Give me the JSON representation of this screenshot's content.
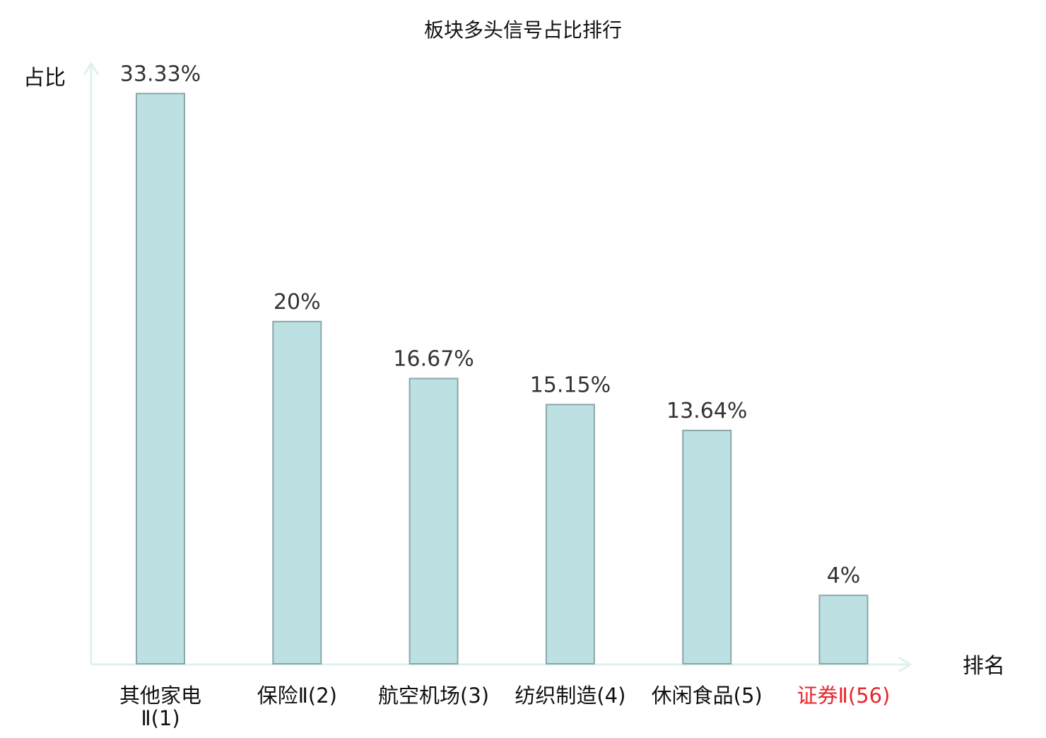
{
  "chart_data": {
    "type": "bar",
    "title": "板块多头信号占比排行",
    "xlabel": "排名",
    "ylabel": "占比",
    "categories": [
      [
        "其他家电",
        "Ⅱ(1)"
      ],
      [
        "保险Ⅱ(2)"
      ],
      [
        "航空机场(3)"
      ],
      [
        "纺织制造(4)"
      ],
      [
        "休闲食品(5)"
      ],
      [
        "证券Ⅱ(56)"
      ]
    ],
    "values": [
      33.33,
      20,
      16.67,
      15.15,
      13.64,
      4
    ],
    "value_labels": [
      "33.33%",
      "20%",
      "16.67%",
      "15.15%",
      "13.64%",
      "4%"
    ],
    "highlight_index": 5,
    "ylim": [
      0,
      34.5
    ],
    "grid": false,
    "colors": {
      "bar_fill": "#bde0e2",
      "bar_stroke": "#8aa7aa",
      "axis": "#dff1ef",
      "text": "#333333",
      "title": "#111111",
      "highlight": "#e8262c"
    }
  }
}
